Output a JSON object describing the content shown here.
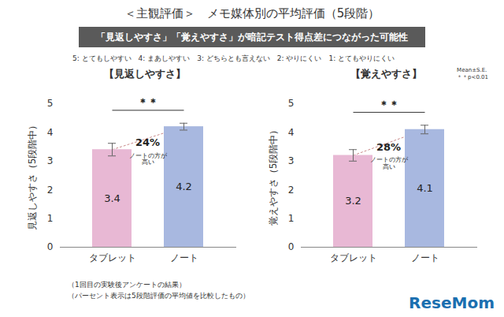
{
  "title": "＜主観評価＞　メモ媒体別の平均評価（5段階）",
  "subtitle": "「見返しやすさ」「覚えやすさ」が暗記テスト得点差につながった可能性",
  "scale_note": "5: とてもしやすい　4: まあしやすい　3: どちらとも言えない　2: やりにくい　1: とてもやりにくい",
  "footnotes": [
    "（1回目の実験後アンケートの結果）",
    "（パーセント表示は5段階評価の平均値を比較したもの）"
  ],
  "logo": "ReseMom",
  "chart_data": [
    {
      "type": "bar",
      "title": "【見返しやすさ】",
      "y_label": "見返しやすさ（5段階中）",
      "categories": [
        "タブレット",
        "ノート"
      ],
      "values": [
        3.4,
        4.2
      ],
      "errors": [
        0.22,
        0.12
      ],
      "colors": [
        "#e8b8d4",
        "#a8b8e0"
      ],
      "ylim": [
        0,
        5
      ],
      "yticks": [
        0,
        1,
        2,
        3,
        4,
        5
      ],
      "data_labels": true,
      "annotations": {
        "difference": "24%",
        "difference_note": "ノートの方が\n高い",
        "significance": "＊＊"
      }
    },
    {
      "type": "bar",
      "title": "【覚えやすさ】",
      "y_label": "覚えやすさ（5段階中）",
      "categories": [
        "タブレット",
        "ノート"
      ],
      "values": [
        3.2,
        4.1
      ],
      "errors": [
        0.2,
        0.15
      ],
      "colors": [
        "#e8b8d4",
        "#a8b8e0"
      ],
      "ylim": [
        0,
        5
      ],
      "yticks": [
        0,
        1,
        2,
        3,
        4,
        5
      ],
      "data_labels": true,
      "annotations": {
        "difference": "28%",
        "difference_note": "ノートの方が\n高い",
        "significance": "＊＊"
      },
      "stat_note": [
        "Mean±S.E.",
        "＊＊p<0.01"
      ]
    }
  ]
}
